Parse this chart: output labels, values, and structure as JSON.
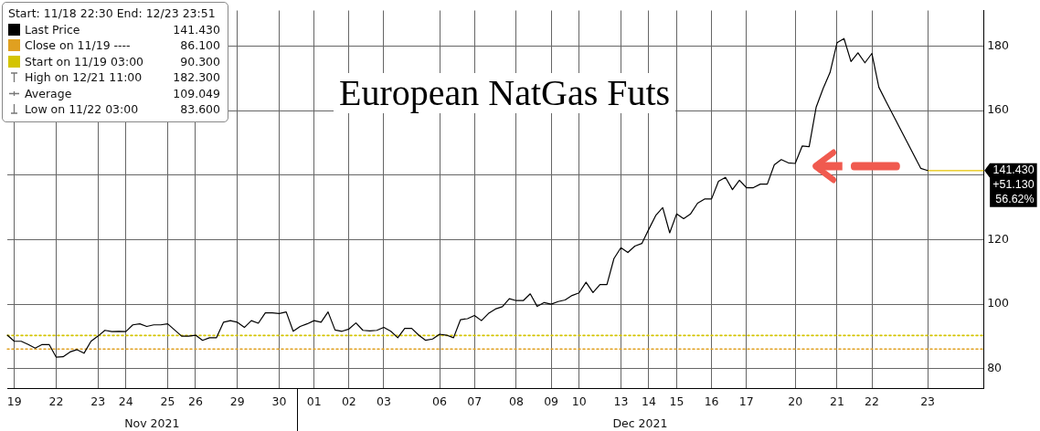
{
  "chart_data": {
    "type": "line",
    "title": "European NatGas Futs",
    "legend": "top left",
    "grid": true,
    "marker": "none",
    "line_style": "solid",
    "categories": [
      null,
      "19",
      null,
      null,
      null,
      null,
      null,
      "22",
      null,
      null,
      null,
      null,
      null,
      "23",
      null,
      null,
      null,
      "24",
      null,
      null,
      null,
      null,
      null,
      "25",
      null,
      null,
      null,
      "26",
      null,
      null,
      null,
      null,
      null,
      "29",
      null,
      null,
      null,
      null,
      null,
      "30",
      null,
      null,
      null,
      null,
      "01",
      null,
      null,
      null,
      null,
      "02",
      null,
      null,
      null,
      null,
      "03",
      null,
      null,
      null,
      null,
      null,
      null,
      null,
      "06",
      null,
      null,
      null,
      null,
      "07",
      null,
      null,
      null,
      null,
      null,
      "08",
      null,
      null,
      null,
      null,
      "09",
      null,
      null,
      null,
      "10",
      null,
      null,
      null,
      null,
      null,
      "13",
      null,
      null,
      null,
      "14",
      null,
      null,
      null,
      "15",
      null,
      null,
      null,
      null,
      "16",
      null,
      null,
      null,
      null,
      "17",
      null,
      null,
      null,
      null,
      null,
      null,
      "20",
      null,
      null,
      null,
      null,
      null,
      "21",
      null,
      null,
      null,
      null,
      "22",
      null,
      null,
      null,
      null,
      null,
      null,
      null,
      "23",
      null,
      null,
      null,
      null,
      null,
      null,
      null,
      null
    ],
    "ylim": [
      74,
      191
    ],
    "yticks": [
      80,
      100,
      120,
      {
        "value": 140,
        "label": null
      },
      160,
      180
    ],
    "series": [
      {
        "name": "Last Price",
        "color": "#000000",
        "values": [
          90.4,
          88.5,
          88.5,
          87.5,
          86.4,
          87.5,
          87.5,
          83.6,
          83.7,
          85.2,
          85.9,
          84.8,
          88.5,
          90.1,
          91.9,
          91.5,
          91.6,
          91.5,
          93.6,
          93.9,
          93.1,
          93.6,
          93.6,
          93.9,
          92,
          90.1,
          90.1,
          90.4,
          88.8,
          89.6,
          89.6,
          94.4,
          94.9,
          94.4,
          92.8,
          94.9,
          94.1,
          97.3,
          97.3,
          97.1,
          97.6,
          91.6,
          93.1,
          93.9,
          94.9,
          94.4,
          97.6,
          92,
          91.6,
          92.3,
          94.2,
          91.9,
          91.7,
          91.9,
          92.8,
          91.6,
          89.6,
          92.5,
          92.5,
          90.4,
          88.8,
          89.2,
          90.7,
          90.4,
          89.6,
          95.2,
          95.5,
          96.5,
          94.9,
          97.1,
          98.5,
          99.2,
          101.7,
          101.1,
          101.1,
          103.2,
          99.3,
          100.5,
          100,
          100.8,
          101.3,
          102.7,
          103.5,
          106.8,
          103.6,
          106.1,
          106.1,
          114.1,
          117.5,
          116,
          118,
          118.8,
          123.2,
          127.5,
          129.9,
          122.1,
          128,
          126.5,
          128,
          131.3,
          132.6,
          132.6,
          138.1,
          139.3,
          135.5,
          138.4,
          136.1,
          136.1,
          137.2,
          137.2,
          143.2,
          144.8,
          143.8,
          143.6,
          149,
          148.8,
          161,
          166.8,
          171.8,
          181,
          182.3,
          175.2,
          177.9,
          174.8,
          177.7,
          167.2,
          162.9,
          null,
          null,
          null,
          null,
          142.1,
          141.4,
          null,
          null,
          null,
          null,
          null,
          null,
          null,
          null
        ]
      },
      {
        "name": "Close on 11/19 ----",
        "color": "#e0a020",
        "line_style": "dotted",
        "values": [
          86.1,
          86.1,
          86.1,
          86.1,
          86.1,
          86.1,
          86.1,
          86.1,
          86.1,
          86.1,
          86.1,
          86.1,
          86.1,
          86.1,
          86.1,
          86.1,
          86.1,
          86.1,
          86.1,
          86.1,
          86.1,
          86.1,
          86.1,
          86.1,
          86.1,
          86.1,
          86.1,
          86.1,
          86.1,
          86.1,
          86.1,
          86.1,
          86.1,
          86.1,
          86.1,
          86.1,
          86.1,
          86.1,
          86.1,
          86.1,
          86.1,
          86.1,
          86.1,
          86.1,
          86.1,
          86.1,
          86.1,
          86.1,
          86.1,
          86.1,
          86.1,
          86.1,
          86.1,
          86.1,
          86.1,
          86.1,
          86.1,
          86.1,
          86.1,
          86.1,
          86.1,
          86.1,
          86.1,
          86.1,
          86.1,
          86.1,
          86.1,
          86.1,
          86.1,
          86.1,
          86.1,
          86.1,
          86.1,
          86.1,
          86.1,
          86.1,
          86.1,
          86.1,
          86.1,
          86.1,
          86.1,
          86.1,
          86.1,
          86.1,
          86.1,
          86.1,
          86.1,
          86.1,
          86.1,
          86.1,
          86.1,
          86.1,
          86.1,
          86.1,
          86.1,
          86.1,
          86.1,
          86.1,
          86.1,
          86.1,
          86.1,
          86.1,
          86.1,
          86.1,
          86.1,
          86.1,
          86.1,
          86.1,
          86.1,
          86.1,
          86.1,
          86.1,
          86.1,
          86.1,
          86.1,
          86.1,
          86.1,
          86.1,
          86.1,
          86.1,
          86.1,
          86.1,
          86.1,
          86.1,
          86.1,
          86.1,
          86.1,
          86.1,
          86.1,
          86.1,
          86.1,
          86.1,
          86.1,
          86.1,
          86.1,
          86.1,
          86.1,
          86.1,
          86.1,
          86.1,
          86.1
        ]
      },
      {
        "name": "Start on 11/19 03:00",
        "color": "#d4c400",
        "line_style": "dotted",
        "values": [
          90.3,
          90.3,
          90.3,
          90.3,
          90.3,
          90.3,
          90.3,
          90.3,
          90.3,
          90.3,
          90.3,
          90.3,
          90.3,
          90.3,
          90.3,
          90.3,
          90.3,
          90.3,
          90.3,
          90.3,
          90.3,
          90.3,
          90.3,
          90.3,
          90.3,
          90.3,
          90.3,
          90.3,
          90.3,
          90.3,
          90.3,
          90.3,
          90.3,
          90.3,
          90.3,
          90.3,
          90.3,
          90.3,
          90.3,
          90.3,
          90.3,
          90.3,
          90.3,
          90.3,
          90.3,
          90.3,
          90.3,
          90.3,
          90.3,
          90.3,
          90.3,
          90.3,
          90.3,
          90.3,
          90.3,
          90.3,
          90.3,
          90.3,
          90.3,
          90.3,
          90.3,
          90.3,
          90.3,
          90.3,
          90.3,
          90.3,
          90.3,
          90.3,
          90.3,
          90.3,
          90.3,
          90.3,
          90.3,
          90.3,
          90.3,
          90.3,
          90.3,
          90.3,
          90.3,
          90.3,
          90.3,
          90.3,
          90.3,
          90.3,
          90.3,
          90.3,
          90.3,
          90.3,
          90.3,
          90.3,
          90.3,
          90.3,
          90.3,
          90.3,
          90.3,
          90.3,
          90.3,
          90.3,
          90.3,
          90.3,
          90.3,
          90.3,
          90.3,
          90.3,
          90.3,
          90.3,
          90.3,
          90.3,
          90.3,
          90.3,
          90.3,
          90.3,
          90.3,
          90.3,
          90.3,
          90.3,
          90.3,
          90.3,
          90.3,
          90.3,
          90.3,
          90.3,
          90.3,
          90.3,
          90.3,
          90.3,
          90.3,
          90.3,
          90.3,
          90.3,
          90.3,
          90.3,
          90.3,
          90.3,
          90.3,
          90.3,
          90.3,
          90.3,
          90.3,
          90.3,
          90.3
        ]
      },
      {
        "color": "#e6c200",
        "values": [
          null,
          null,
          null,
          null,
          null,
          null,
          null,
          null,
          null,
          null,
          null,
          null,
          null,
          null,
          null,
          null,
          null,
          null,
          null,
          null,
          null,
          null,
          null,
          null,
          null,
          null,
          null,
          null,
          null,
          null,
          null,
          null,
          null,
          null,
          null,
          null,
          null,
          null,
          null,
          null,
          null,
          null,
          null,
          null,
          null,
          null,
          null,
          null,
          null,
          null,
          null,
          null,
          null,
          null,
          null,
          null,
          null,
          null,
          null,
          null,
          null,
          null,
          null,
          null,
          null,
          null,
          null,
          null,
          null,
          null,
          null,
          null,
          null,
          null,
          null,
          null,
          null,
          null,
          null,
          null,
          null,
          null,
          null,
          null,
          null,
          null,
          null,
          null,
          null,
          null,
          null,
          null,
          null,
          null,
          null,
          null,
          null,
          null,
          null,
          null,
          null,
          null,
          null,
          null,
          null,
          null,
          null,
          null,
          null,
          null,
          null,
          null,
          null,
          null,
          null,
          null,
          null,
          null,
          null,
          null,
          null,
          null,
          null,
          null,
          null,
          null,
          null,
          null,
          null,
          null,
          null,
          null,
          141.4,
          141.4,
          141.4,
          141.4,
          141.4,
          141.4,
          141.4,
          141.4,
          141.4
        ]
      }
    ],
    "annotations": [
      "Start: 11/18 22:30 End: 12/23 23:51",
      "141.430",
      "86.100",
      "90.300",
      "High on 12/21 11:00",
      "182.300",
      "Average",
      "109.049",
      "Low on 11/22 03:00",
      "83.600",
      "141.430\n+51.130\n56.62%",
      "Nov 2021",
      "Dec 2021"
    ]
  }
}
